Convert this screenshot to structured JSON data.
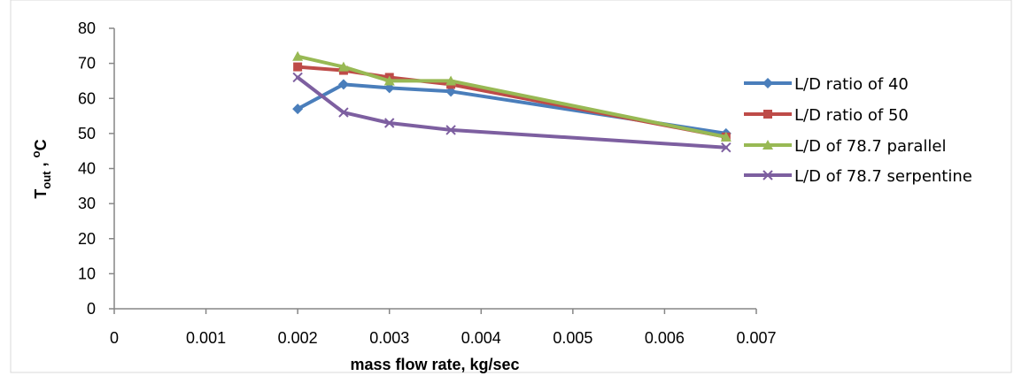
{
  "chart_data": {
    "type": "line",
    "xlabel": "mass flow rate, kg/sec",
    "ylabel": {
      "main": "T",
      "sub": "out",
      "suffix": " , ",
      "sup": "o",
      "unit": "C"
    },
    "xlim": [
      0,
      0.007
    ],
    "ylim": [
      0,
      80
    ],
    "x_ticks": [
      0,
      0.001,
      0.002,
      0.003,
      0.004,
      0.005,
      0.006,
      0.007
    ],
    "x_tick_labels": [
      "0",
      "0.001",
      "0.002",
      "0.003",
      "0.004",
      "0.005",
      "0.006",
      "0.007"
    ],
    "y_ticks": [
      0,
      10,
      20,
      30,
      40,
      50,
      60,
      70,
      80
    ],
    "y_tick_labels": [
      "0",
      "10",
      "20",
      "30",
      "40",
      "50",
      "60",
      "70",
      "80"
    ],
    "grid": false,
    "legend_position": "right",
    "series": [
      {
        "name": "L/D ratio of 40",
        "color": "#4a7ebb",
        "marker": "diamond",
        "x": [
          0.002,
          0.0025,
          0.003,
          0.00367,
          0.00667
        ],
        "y": [
          57,
          64,
          63,
          62,
          50
        ]
      },
      {
        "name": "L/D ratio of 50",
        "color": "#be4b48",
        "marker": "square",
        "x": [
          0.002,
          0.0025,
          0.003,
          0.00367,
          0.00667
        ],
        "y": [
          69,
          68,
          66,
          64,
          49
        ]
      },
      {
        "name": "L/D  of 78.7 parallel",
        "color": "#98b954",
        "marker": "triangle",
        "x": [
          0.002,
          0.0025,
          0.003,
          0.00367,
          0.00667
        ],
        "y": [
          72,
          69,
          65,
          65,
          49
        ]
      },
      {
        "name": "L/D of 78.7 serpentine",
        "color": "#7d5fa0",
        "marker": "x",
        "x": [
          0.002,
          0.0025,
          0.003,
          0.00367,
          0.00667
        ],
        "y": [
          66,
          56,
          53,
          51,
          46
        ]
      }
    ]
  }
}
